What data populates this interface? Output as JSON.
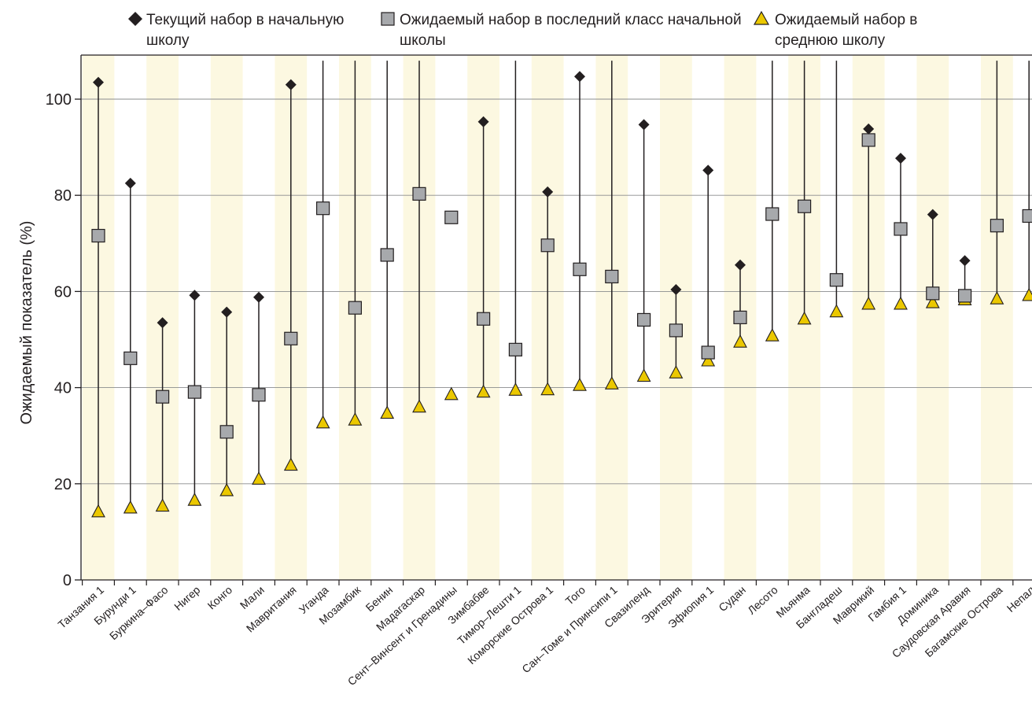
{
  "chart_data": {
    "type": "scatter",
    "ylabel": "Ожидаемый показатель (%)",
    "ylim": [
      0,
      100
    ],
    "yticks": [
      0,
      20,
      40,
      60,
      80,
      100
    ],
    "grid": true,
    "legend_position": "top",
    "categories": [
      "Танзания 1",
      "Бурунди 1",
      "Буркина–Фасо",
      "Нигер",
      "Конго",
      "Мали",
      "Мавритания",
      "Уганда",
      "Мозамбик",
      "Бенин",
      "Мадагаскар",
      "Сент–Винсент и Гренадины",
      "Зимбабве",
      "Тимор–Лешти 1",
      "Коморские Острова 1",
      "Того",
      "Сан–Томе и Принсипи 1",
      "Свазиленд",
      "Эритерия",
      "Эфиопия 1",
      "Судан",
      "Лесото",
      "Мьянма",
      "Бангладеш",
      "Маврикий",
      "Гамбия 1",
      "Доминика",
      "Саудовская Аравия",
      "Багамские Острова",
      "Непал"
    ],
    "series": [
      {
        "name": "Текущий набор в начальную школу",
        "marker": "diamond",
        "color": "#231f20",
        "values": [
          103.5,
          82.5,
          53.5,
          59.2,
          55.7,
          58.8,
          103,
          null,
          null,
          null,
          null,
          null,
          95.3,
          null,
          80.7,
          104.7,
          null,
          94.7,
          60.4,
          85.2,
          65.5,
          null,
          null,
          null,
          93.8,
          87.7,
          76,
          66.4,
          null,
          null
        ]
      },
      {
        "name": "Ожидаемый набор в последний класс начальной школы",
        "marker": "square",
        "color": "#a7a9ac",
        "values": [
          71.6,
          46.1,
          38.1,
          39.1,
          30.8,
          38.5,
          50.2,
          77.3,
          56.6,
          67.6,
          80.3,
          75.4,
          54.3,
          47.9,
          69.6,
          64.6,
          63.1,
          54.1,
          51.9,
          47.3,
          54.6,
          76.1,
          77.7,
          62.4,
          91.5,
          73,
          59.6,
          59.1,
          73.7,
          75.7
        ]
      },
      {
        "name": "Ожидаемый набор в среднюю школу",
        "marker": "triangle",
        "color": "#ebc800",
        "values": [
          14.1,
          14.9,
          15.3,
          16.5,
          18.5,
          20.9,
          23.8,
          32.6,
          33.2,
          34.6,
          35.9,
          38.5,
          39,
          39.4,
          39.5,
          40.4,
          40.7,
          42.3,
          43,
          45.5,
          49.4,
          50.7,
          54.2,
          55.7,
          57.3,
          57.3,
          57.6,
          58.2,
          58.4,
          59.1
        ]
      }
    ],
    "whisker_top": [
      null,
      null,
      null,
      null,
      null,
      null,
      null,
      108,
      108,
      108,
      108,
      null,
      null,
      108,
      null,
      null,
      108,
      null,
      null,
      null,
      null,
      108,
      108,
      108,
      null,
      null,
      null,
      null,
      108,
      108
    ]
  }
}
